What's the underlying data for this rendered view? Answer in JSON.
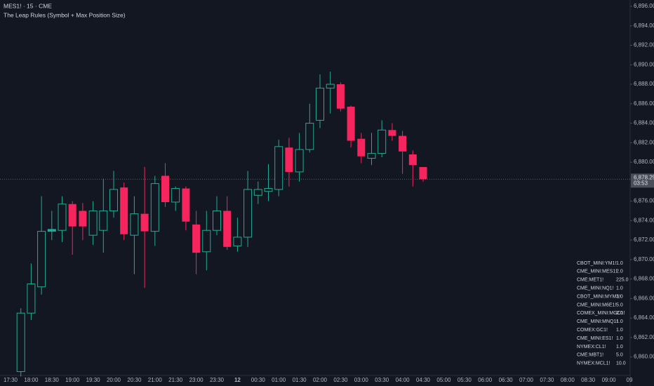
{
  "chart_data": {
    "type": "candlestick",
    "title": "MES1! · 15 · CME",
    "subtitle": "The Leap Rules (Symbol + Max Position Size)",
    "categories": [
      "17:30",
      null,
      "18:00",
      null,
      "18:30",
      null,
      "19:00",
      null,
      "19:30",
      null,
      "20:00",
      null,
      "20:30",
      null,
      "21:00",
      null,
      "21:30",
      null,
      "23:00",
      null,
      "23:30",
      null,
      "12",
      null,
      "00:30",
      null,
      "01:00",
      null,
      "01:30",
      null,
      "02:00",
      null,
      "02:30",
      null,
      "03:00",
      null,
      "03:30",
      null,
      "04:00",
      null,
      "04:30",
      null,
      "05:00",
      null,
      "05:30",
      null,
      "06:00",
      null,
      "06:30",
      null,
      "07:00",
      null,
      "07:30",
      null,
      "08:00",
      null,
      "08:30",
      null,
      "09:00",
      null,
      "09"
    ],
    "open": [
      null,
      6858.5,
      6864.5,
      6867.2,
      6872.9,
      6873.0,
      6875.7,
      6875.0,
      6872.5,
      6873.0,
      6875.0,
      6877.4,
      6872.5,
      6874.7,
      6872.9,
      6878.6,
      6875.9,
      6877.3,
      6873.6,
      6870.8,
      6873.0,
      6875.0,
      6871.4,
      6872.3,
      6876.6,
      6877.0,
      6877.2,
      6881.5,
      6879.0,
      6881.3,
      6884.3,
      6887.6,
      6888.0,
      6885.7,
      6882.4,
      6880.4,
      6880.9,
      6883.3,
      6882.7,
      6880.8,
      6879.5,
      null,
      null,
      null,
      null,
      null,
      null,
      null,
      null,
      null,
      null,
      null,
      null,
      null,
      null,
      null,
      null,
      null,
      null,
      null,
      null
    ],
    "high": [
      null,
      6865.0,
      6869.6,
      6876.5,
      6875.0,
      6876.5,
      6876.0,
      6875.8,
      6876.0,
      6878.3,
      6879.1,
      6877.9,
      6876.5,
      6879.5,
      6878.6,
      6879.9,
      6877.5,
      6877.5,
      6875.0,
      6875.0,
      6876.5,
      6876.5,
      6874.3,
      6879.1,
      6878.0,
      6879.8,
      6882.3,
      6882.5,
      6883.0,
      6886.0,
      6889.0,
      6889.3,
      6888.2,
      6885.8,
      6883.0,
      6883.0,
      6884.3,
      6884.0,
      6883.2,
      6881.2,
      6879.5,
      null,
      null,
      null,
      null,
      null,
      null,
      null,
      null,
      null,
      null,
      null,
      null,
      null,
      null,
      null,
      null,
      null,
      null,
      null,
      null
    ],
    "low": [
      null,
      6858.0,
      6863.8,
      6866.4,
      6872.0,
      6871.8,
      6870.5,
      6872.0,
      6871.5,
      6870.7,
      6874.3,
      6872.0,
      6868.5,
      6867.1,
      6871.4,
      6875.4,
      6875.0,
      6873.0,
      6868.5,
      6868.9,
      6872.5,
      6871.0,
      6870.8,
      6871.3,
      6875.7,
      6876.0,
      6876.5,
      6877.5,
      6878.0,
      6881.0,
      6883.5,
      6885.0,
      6885.2,
      6881.5,
      6879.9,
      6879.7,
      6880.5,
      6882.2,
      6878.8,
      6877.5,
      6878.0,
      null,
      null,
      null,
      null,
      null,
      null,
      null,
      null,
      null,
      null,
      null,
      null,
      null,
      null,
      null,
      null,
      null,
      null,
      null,
      null
    ],
    "close": [
      null,
      6864.5,
      6867.5,
      6872.9,
      6873.1,
      6875.7,
      6873.4,
      6873.4,
      6875.0,
      6875.0,
      6877.2,
      6872.6,
      6874.7,
      6872.9,
      6877.8,
      6875.9,
      6877.3,
      6873.9,
      6870.7,
      6873.0,
      6875.0,
      6871.3,
      6872.3,
      6877.2,
      6877.2,
      6877.3,
      6881.6,
      6879.0,
      6881.3,
      6884.0,
      6887.6,
      6888.0,
      6885.5,
      6882.2,
      6880.6,
      6880.9,
      6883.3,
      6882.7,
      6881.1,
      6879.7,
      6878.25,
      null,
      null,
      null,
      null,
      null,
      null,
      null,
      null,
      null,
      null,
      null,
      null,
      null,
      null,
      null,
      null,
      null,
      null,
      null,
      null
    ],
    "up_color": "#22ab94",
    "down_color": "#f7255e",
    "ylim": [
      6858.1,
      6896.65
    ],
    "yticks": [
      {
        "value": 6860,
        "label": "6,860.00"
      },
      {
        "value": 6862,
        "label": "6,862.00"
      },
      {
        "value": 6864,
        "label": "6,864.00"
      },
      {
        "value": 6866,
        "label": "6,866.00"
      },
      {
        "value": 6868,
        "label": "6,868.00"
      },
      {
        "value": 6870,
        "label": "6,870.00"
      },
      {
        "value": 6872,
        "label": "6,872.00"
      },
      {
        "value": 6874,
        "label": "6,874.00"
      },
      {
        "value": 6876,
        "label": "6,876.00"
      },
      {
        "value": 6880,
        "label": "6,880.00"
      },
      {
        "value": 6882,
        "label": "6,882.00"
      },
      {
        "value": 6884,
        "label": "6,884.00"
      },
      {
        "value": 6886,
        "label": "6,886.00"
      },
      {
        "value": 6888,
        "label": "6,888.00"
      },
      {
        "value": 6890,
        "label": "6,890.00"
      },
      {
        "value": 6892,
        "label": "6,892.00"
      },
      {
        "value": 6894,
        "label": "6,894.00"
      },
      {
        "value": 6896,
        "label": "6,896.00"
      }
    ],
    "last_price": {
      "value": 6878.25,
      "label": "6,878.25"
    },
    "countdown": "03:53",
    "table": {
      "rows": [
        [
          "CBOT_MINI:YM1!",
          "1.0"
        ],
        [
          "CME_MINI:MES1!",
          "2.0"
        ],
        [
          "CME:MET1!",
          "225.0"
        ],
        [
          "CME_MINI:NQ1!",
          "1.0"
        ],
        [
          "CBOT_MINI:MYM1!",
          "3.0"
        ],
        [
          "CME_MINI:M6E1!",
          "5.0"
        ],
        [
          "COMEX_MINI:MGC1!",
          "2.0"
        ],
        [
          "CME_MINI:MNQ1!",
          "1.0"
        ],
        [
          "COMEX:GC1!",
          "1.0"
        ],
        [
          "CME_MINI:ES1!",
          "1.0"
        ],
        [
          "NYMEX:CL1!",
          "1.0"
        ],
        [
          "CME:MBT1!",
          "5.0"
        ],
        [
          "NYMEX:MCL1!",
          "10.0"
        ]
      ]
    }
  }
}
